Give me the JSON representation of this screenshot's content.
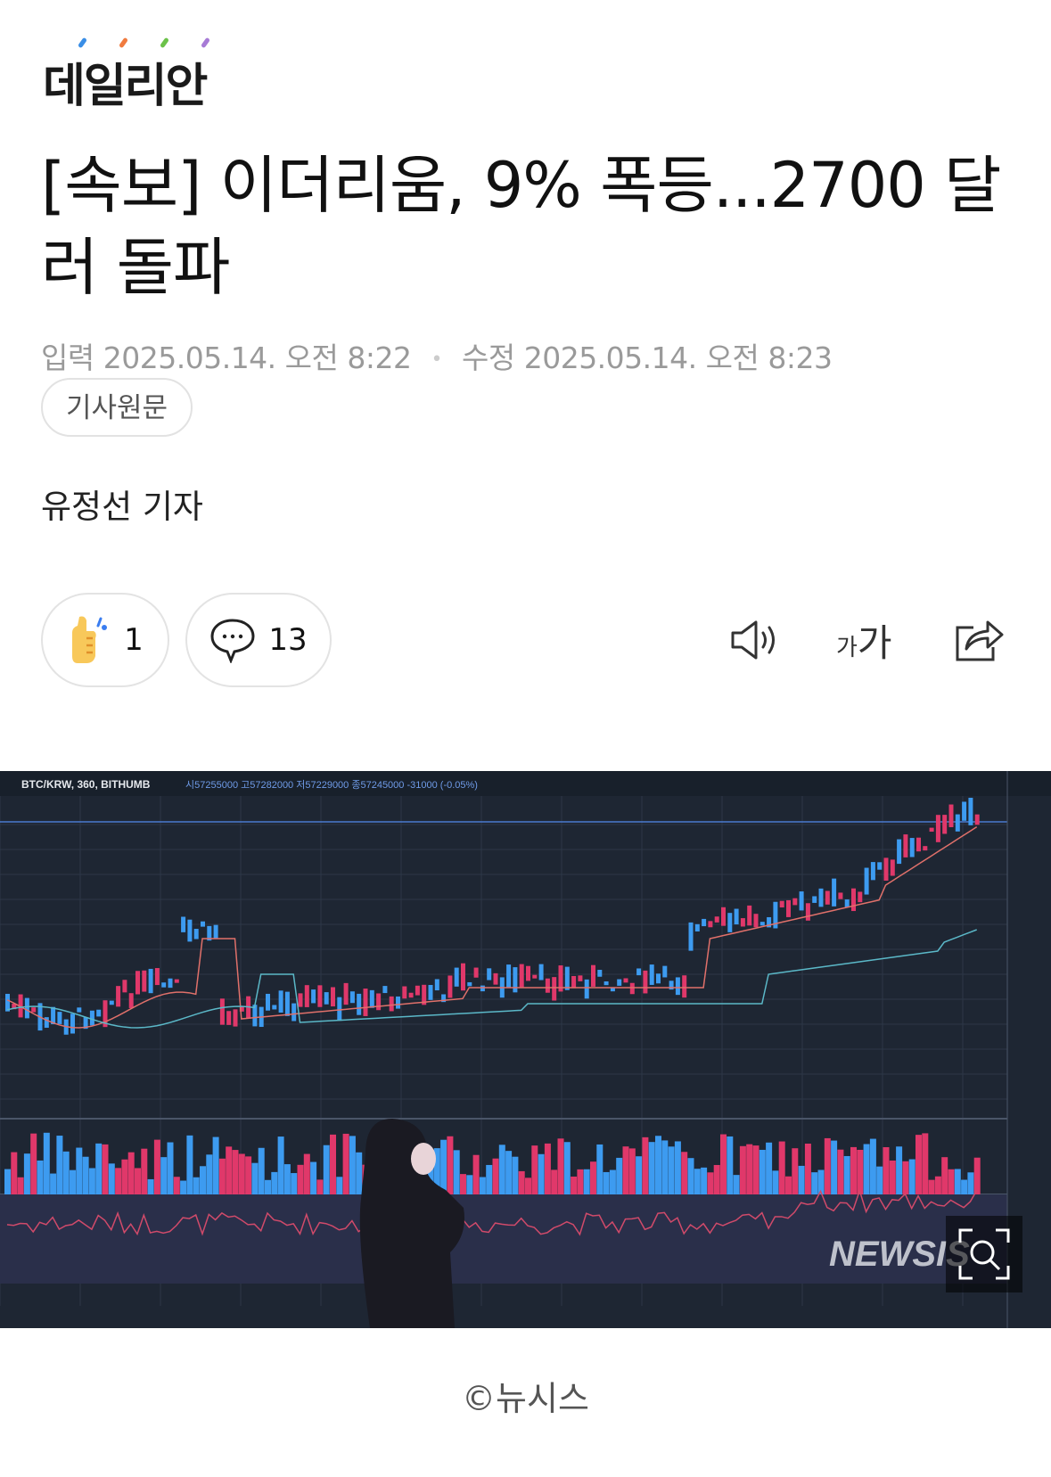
{
  "logo": {
    "text": "데일리안",
    "dot_colors": [
      "#3a8ee6",
      "#f07b3f",
      "#6cc24a",
      "#a77bd6"
    ]
  },
  "article": {
    "title": "[속보] 이더리움, 9% 폭등...2700 달러 돌파",
    "input_label": "입력",
    "input_time": "2025.05.14. 오전 8:22",
    "modified_label": "수정",
    "modified_time": "2025.05.14. 오전 8:23",
    "original_button": "기사원문",
    "reporter": "유정선 기자"
  },
  "actions": {
    "reaction_count": "1",
    "comment_count": "13",
    "icons": [
      "thumbs-up-icon",
      "comment-icon",
      "speaker-icon",
      "font-size-icon",
      "share-icon"
    ],
    "font_size_label_small": "가",
    "font_size_label_large": "가"
  },
  "photo": {
    "chart_header": "BTC/KRW, 360, BITHUMB",
    "ohlc": "시57255000 고57282000 저57229000 종57245000 -31000 (-0.05%)",
    "watermark": "NEWSIS",
    "up_color": "#e0386a",
    "down_color": "#3d9bf0",
    "bg_color": "#1e2633"
  },
  "caption": "©뉴시스"
}
